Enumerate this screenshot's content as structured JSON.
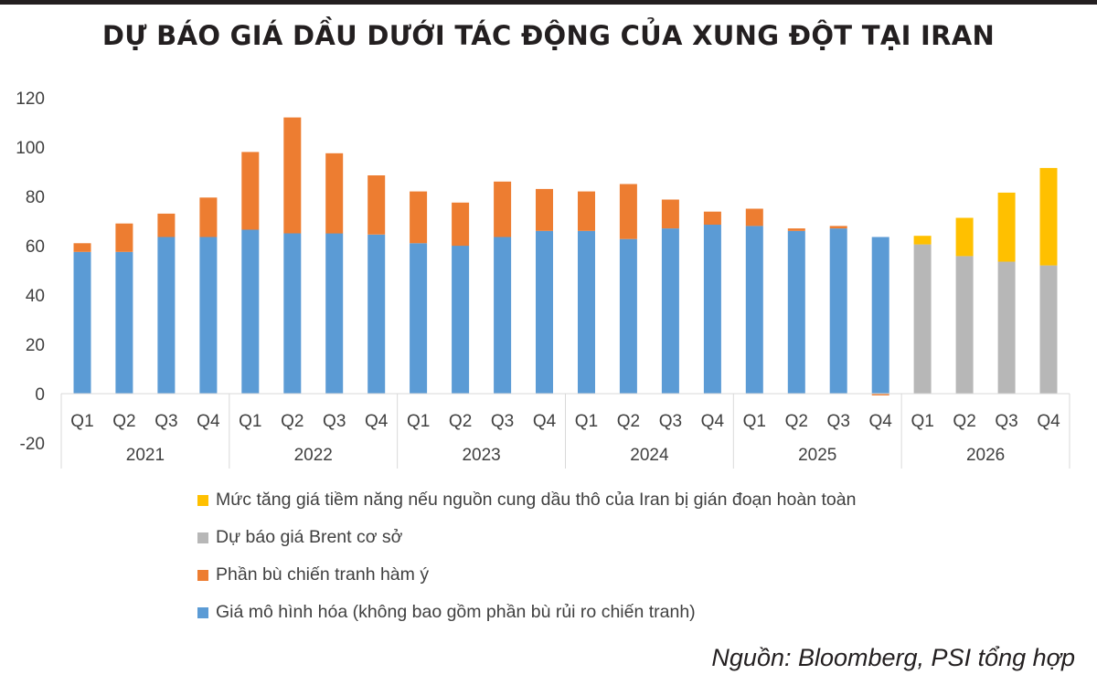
{
  "title": "DỰ BÁO GIÁ DẦU DƯỚI TÁC ĐỘNG CỦA XUNG ĐỘT TẠI IRAN",
  "source": "Nguồn: Bloomberg, PSI tổng hợp",
  "chart_data": {
    "type": "bar",
    "stacked": true,
    "categories": [
      "2021 Q1",
      "2021 Q2",
      "2021 Q3",
      "2021 Q4",
      "2022 Q1",
      "2022 Q2",
      "2022 Q3",
      "2022 Q4",
      "2023 Q1",
      "2023 Q2",
      "2023 Q3",
      "2023 Q4",
      "2024 Q1",
      "2024 Q2",
      "2024 Q3",
      "2024 Q4",
      "2025 Q1",
      "2025 Q2",
      "2025 Q3",
      "2025 Q4",
      "2026 Q1",
      "2026 Q2",
      "2026 Q3",
      "2026 Q4"
    ],
    "quarter_labels": [
      "Q1",
      "Q2",
      "Q3",
      "Q4"
    ],
    "years": [
      "2021",
      "2022",
      "2023",
      "2024",
      "2025",
      "2026"
    ],
    "y_ticks": [
      "120",
      "100",
      "80",
      "60",
      "40",
      "20",
      "0",
      "-20"
    ],
    "ylim": [
      -20,
      120
    ],
    "grid": false,
    "legend_position": "bottom",
    "series": [
      {
        "name": "Giá mô hình hóa (không bao gồm phần bù rủi ro chiến tranh)",
        "color": "#5b9bd5",
        "values": [
          57.5,
          57.5,
          63.5,
          63.5,
          66.5,
          65,
          65,
          64.5,
          61,
          60,
          63.5,
          66,
          66,
          62.7,
          67,
          68.5,
          68,
          66,
          67,
          63.5,
          0,
          0,
          0,
          0
        ]
      },
      {
        "name": "Phần bù chiến tranh hàm ý",
        "color": "#ed7d31",
        "values": [
          3.5,
          11.5,
          9.5,
          16,
          31.5,
          47,
          32.5,
          24,
          21,
          17.5,
          22.5,
          17,
          16,
          22.3,
          11.7,
          5.3,
          7,
          1,
          1,
          -0.7,
          0,
          0,
          0,
          0
        ]
      },
      {
        "name": "Dự báo giá Brent cơ sở",
        "color": "#b7b7b7",
        "values": [
          0,
          0,
          0,
          0,
          0,
          0,
          0,
          0,
          0,
          0,
          0,
          0,
          0,
          0,
          0,
          0,
          0,
          0,
          0,
          0,
          60.5,
          55.8,
          53.5,
          52
        ]
      },
      {
        "name": "Mức tăng giá tiềm năng nếu nguồn cung dầu thô của Iran bị gián đoạn hoàn toàn",
        "color": "#ffc000",
        "values": [
          0,
          0,
          0,
          0,
          0,
          0,
          0,
          0,
          0,
          0,
          0,
          0,
          0,
          0,
          0,
          0,
          0,
          0,
          0,
          0,
          3.5,
          15.5,
          28,
          39.5
        ]
      }
    ],
    "legend_order": [
      3,
      2,
      1,
      0
    ]
  }
}
